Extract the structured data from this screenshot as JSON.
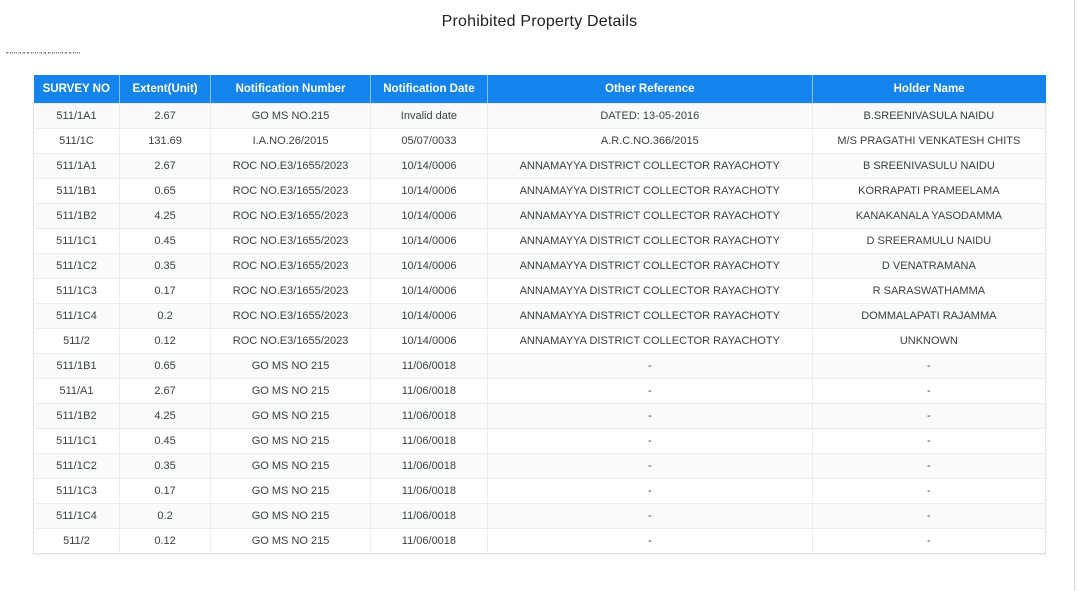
{
  "page": {
    "title": "Prohibited Property Details",
    "artifact_marks": "\"\"\"\"\"\"\"\"\"\"\"\"\"\"\"\"\"\""
  },
  "theme": {
    "header_bg": "#1583ec",
    "header_text": "#ffffff",
    "body_text": "#3c4043",
    "row_alt_bg": "#f9fafa",
    "border": "#ebebeb"
  },
  "table": {
    "columns": [
      "SURVEY NO",
      "Extent(Unit)",
      "Notification Number",
      "Notification Date",
      "Other Reference",
      "Holder Name"
    ],
    "rows": [
      [
        "511/1A1",
        "2.67",
        "GO MS NO.215",
        "Invalid date",
        "DATED: 13-05-2016",
        "B.SREENIVASULA NAIDU"
      ],
      [
        "511/1C",
        "131.69",
        "I.A.NO.26/2015",
        "05/07/0033",
        "A.R.C.NO.366/2015",
        "M/S PRAGATHI VENKATESH CHITS"
      ],
      [
        "511/1A1",
        "2.67",
        "ROC NO.E3/1655/2023",
        "10/14/0006",
        "ANNAMAYYA DISTRICT COLLECTOR RAYACHOTY",
        "B SREENIVASULU NAIDU"
      ],
      [
        "511/1B1",
        "0.65",
        "ROC NO.E3/1655/2023",
        "10/14/0006",
        "ANNAMAYYA DISTRICT COLLECTOR RAYACHOTY",
        "KORRAPATI PRAMEELAMA"
      ],
      [
        "511/1B2",
        "4.25",
        "ROC NO.E3/1655/2023",
        "10/14/0006",
        "ANNAMAYYA DISTRICT COLLECTOR RAYACHOTY",
        "KANAKANALA YASODAMMA"
      ],
      [
        "511/1C1",
        "0.45",
        "ROC NO.E3/1655/2023",
        "10/14/0006",
        "ANNAMAYYA DISTRICT COLLECTOR RAYACHOTY",
        "D SREERAMULU NAIDU"
      ],
      [
        "511/1C2",
        "0.35",
        "ROC NO.E3/1655/2023",
        "10/14/0006",
        "ANNAMAYYA DISTRICT COLLECTOR RAYACHOTY",
        "D VENATRAMANA"
      ],
      [
        "511/1C3",
        "0.17",
        "ROC NO.E3/1655/2023",
        "10/14/0006",
        "ANNAMAYYA DISTRICT COLLECTOR RAYACHOTY",
        "R SARASWATHAMMA"
      ],
      [
        "511/1C4",
        "0.2",
        "ROC NO.E3/1655/2023",
        "10/14/0006",
        "ANNAMAYYA DISTRICT COLLECTOR RAYACHOTY",
        "DOMMALAPATI RAJAMMA"
      ],
      [
        "511/2",
        "0.12",
        "ROC NO.E3/1655/2023",
        "10/14/0006",
        "ANNAMAYYA DISTRICT COLLECTOR RAYACHOTY",
        "UNKNOWN"
      ],
      [
        "511/1B1",
        "0.65",
        "GO MS NO 215",
        "11/06/0018",
        "-",
        "-"
      ],
      [
        "511/A1",
        "2.67",
        "GO MS NO 215",
        "11/06/0018",
        "-",
        "-"
      ],
      [
        "511/1B2",
        "4.25",
        "GO MS NO 215",
        "11/06/0018",
        "-",
        "-"
      ],
      [
        "511/1C1",
        "0.45",
        "GO MS NO 215",
        "11/06/0018",
        "-",
        "-"
      ],
      [
        "511/1C2",
        "0.35",
        "GO MS NO 215",
        "11/06/0018",
        "-",
        "-"
      ],
      [
        "511/1C3",
        "0.17",
        "GO MS NO 215",
        "11/06/0018",
        "-",
        "-"
      ],
      [
        "511/1C4",
        "0.2",
        "GO MS NO 215",
        "11/06/0018",
        "-",
        "-"
      ],
      [
        "511/2",
        "0.12",
        "GO MS NO 215",
        "11/06/0018",
        "-",
        "-"
      ]
    ]
  }
}
